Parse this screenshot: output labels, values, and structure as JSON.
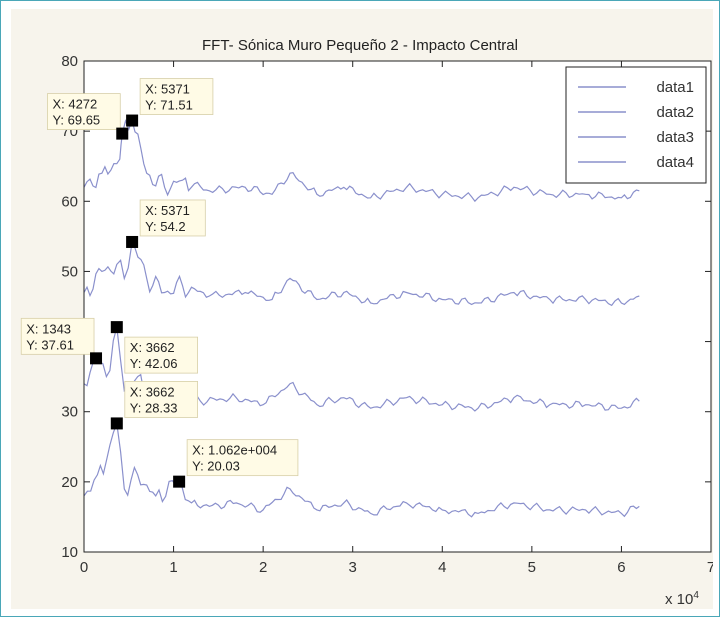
{
  "chart_data": {
    "type": "line",
    "title": "FFT- Sónica Muro Pequeño 2 - Impacto Central",
    "xlabel": "",
    "ylabel": "",
    "xlim": [
      0,
      70000
    ],
    "ylim": [
      10,
      80
    ],
    "x_ticks": [
      0,
      10000,
      20000,
      30000,
      40000,
      50000,
      60000,
      70000
    ],
    "x_tick_labels": [
      "0",
      "1",
      "2",
      "3",
      "4",
      "5",
      "6",
      "7"
    ],
    "x_multiplier": "x 10",
    "x_multiplier_exp": "4",
    "y_ticks": [
      10,
      20,
      30,
      40,
      50,
      60,
      70,
      80
    ],
    "y_tick_labels": [
      "10",
      "20",
      "30",
      "40",
      "50",
      "60",
      "70",
      "80"
    ],
    "grid": false,
    "legend_position": "top-right",
    "series_color": "#8a90cc",
    "series": [
      {
        "name": "data1",
        "offset": 60,
        "x": [
          0,
          2000,
          4000,
          4272,
          5371,
          7000,
          9000,
          11000,
          14000,
          18000,
          21000,
          23000,
          26000,
          29000,
          32000,
          36000,
          40000,
          44000,
          48000,
          52000,
          56000,
          60000,
          62000
        ],
        "y": [
          62,
          64,
          66,
          69.65,
          71.51,
          64,
          62,
          63,
          61.5,
          62,
          61,
          64,
          61,
          62,
          60.5,
          62,
          61,
          60.5,
          62,
          61,
          61,
          60.5,
          61.5
        ]
      },
      {
        "name": "data2",
        "offset": 45,
        "x": [
          0,
          2000,
          3662,
          4500,
          5371,
          7000,
          9000,
          11000,
          14000,
          18000,
          21000,
          23000,
          26000,
          29000,
          32000,
          36000,
          40000,
          44000,
          48000,
          52000,
          56000,
          60000,
          62000
        ],
        "y": [
          47,
          50,
          51,
          49,
          54.2,
          49,
          47,
          48,
          46.5,
          47,
          46,
          49,
          46,
          47,
          45.5,
          47,
          46,
          45.5,
          47,
          46,
          46,
          45.5,
          46.5
        ]
      },
      {
        "name": "data3",
        "offset": 30,
        "x": [
          0,
          1343,
          2500,
          3662,
          4500,
          6000,
          8000,
          10000,
          13000,
          17000,
          20000,
          23000,
          26000,
          29000,
          32000,
          36000,
          40000,
          44000,
          48000,
          52000,
          56000,
          60000,
          62000
        ],
        "y": [
          34,
          37.61,
          35,
          42.06,
          33,
          35,
          32,
          33,
          31.5,
          32,
          31,
          34,
          31,
          32,
          30.5,
          32,
          31,
          30.5,
          32,
          31,
          31,
          30.5,
          31.5
        ]
      },
      {
        "name": "data4",
        "offset": 15,
        "x": [
          0,
          1500,
          2500,
          3662,
          4500,
          6000,
          8000,
          10620,
          12000,
          14000,
          17000,
          20000,
          23000,
          26000,
          29000,
          32000,
          36000,
          40000,
          44000,
          48000,
          52000,
          56000,
          60000,
          62000
        ],
        "y": [
          18,
          21,
          23,
          28.33,
          19,
          21,
          18,
          20.03,
          17,
          16.5,
          17,
          16,
          19,
          16,
          17,
          15.5,
          17,
          16,
          15.5,
          17,
          16,
          16,
          15.5,
          16.5
        ]
      }
    ],
    "datatips": [
      {
        "label_x": "X: 4272",
        "label_y": "Y: 69.65",
        "x": 4272,
        "y": 69.65,
        "box_side": "left-above"
      },
      {
        "label_x": "X: 5371",
        "label_y": "Y: 71.51",
        "x": 5371,
        "y": 71.51,
        "box_side": "right-above"
      },
      {
        "label_x": "X: 5371",
        "label_y": "Y: 54.2",
        "x": 5371,
        "y": 54.2,
        "box_side": "right-above"
      },
      {
        "label_x": "X: 3662",
        "label_y": "Y: 42.06",
        "x": 3662,
        "y": 42.06,
        "box_side": "right-below"
      },
      {
        "label_x": "X: 1343",
        "label_y": "Y: 37.61",
        "x": 1343,
        "y": 37.61,
        "box_side": "left-above"
      },
      {
        "label_x": "X: 3662",
        "label_y": "Y: 28.33",
        "x": 3662,
        "y": 28.33,
        "box_side": "right-above"
      },
      {
        "label_x": "X: 1.062e+004",
        "label_y": "Y: 20.03",
        "x": 10620,
        "y": 20.03,
        "box_side": "right-above"
      }
    ]
  }
}
